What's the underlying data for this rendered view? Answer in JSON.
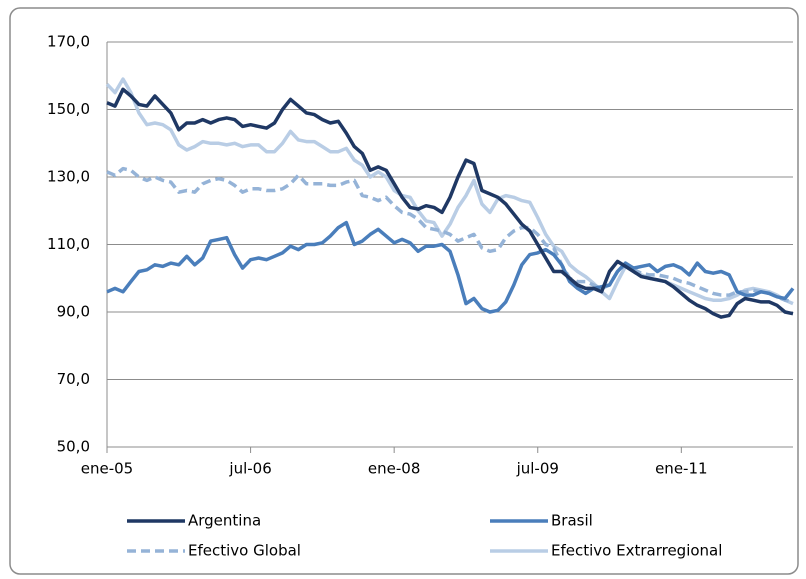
{
  "chart_data": {
    "type": "line",
    "categories": [
      "ene-05",
      null,
      null,
      null,
      null,
      null,
      null,
      null,
      null,
      null,
      null,
      null,
      null,
      null,
      null,
      null,
      null,
      null,
      "jul-06",
      null,
      null,
      null,
      null,
      null,
      null,
      null,
      null,
      null,
      null,
      null,
      null,
      null,
      null,
      null,
      null,
      null,
      "ene-08",
      null,
      null,
      null,
      null,
      null,
      null,
      null,
      null,
      null,
      null,
      null,
      null,
      null,
      null,
      null,
      null,
      null,
      "jul-09",
      null,
      null,
      null,
      null,
      null,
      null,
      null,
      null,
      null,
      null,
      null,
      null,
      null,
      null,
      null,
      null,
      null,
      "ene-11",
      null,
      null,
      null,
      null,
      null,
      null,
      null,
      null,
      null,
      null,
      null,
      null,
      null,
      null
    ],
    "series": [
      {
        "name": "Argentina",
        "color": "#1f3864",
        "dashed": false,
        "values": [
          152,
          151,
          156,
          154,
          151.5,
          151,
          154,
          151.5,
          149,
          144,
          146,
          146,
          147,
          146,
          147,
          147.5,
          147,
          145,
          145.5,
          145,
          144.5,
          146,
          150,
          153,
          151,
          149,
          148.5,
          147,
          146,
          146.5,
          143,
          139,
          137,
          132,
          133,
          132,
          128,
          124,
          121,
          120.5,
          121.5,
          121,
          119.5,
          124,
          130,
          135,
          134,
          126,
          125,
          124,
          122,
          119,
          116,
          114,
          110,
          106,
          102,
          102,
          100,
          98,
          97,
          97,
          96,
          102,
          105,
          103.5,
          102,
          100.5,
          100,
          99.5,
          99,
          97.5,
          95.5,
          93.5,
          92,
          91,
          89.5,
          88.5,
          89,
          92.5,
          94,
          93.5,
          93,
          93,
          92,
          90,
          89.5
        ]
      },
      {
        "name": "Brasil",
        "color": "#4a7ebb",
        "dashed": false,
        "values": [
          96,
          97,
          96,
          99,
          102,
          102.5,
          104,
          103.5,
          104.5,
          104,
          106.5,
          104,
          106,
          111,
          111.5,
          112,
          107,
          103,
          105.5,
          106,
          105.5,
          106.5,
          107.5,
          109.5,
          108.5,
          110,
          110,
          110.5,
          112.5,
          115,
          116.5,
          110,
          111,
          113,
          114.5,
          112.5,
          110.5,
          111.5,
          110.5,
          108,
          109.5,
          109.5,
          110,
          108,
          101,
          92.5,
          94,
          91,
          90,
          90.5,
          93,
          98,
          104,
          107,
          107.5,
          108.5,
          107,
          104,
          99,
          97,
          95.5,
          97,
          97.5,
          98,
          102,
          104.5,
          103,
          103.5,
          104,
          102,
          103.5,
          104,
          103,
          101,
          104.5,
          102,
          101.5,
          102,
          101,
          96,
          95,
          95,
          96,
          95.5,
          94.5,
          94,
          97
        ]
      },
      {
        "name": "Efectivo Global",
        "color": "#95b3d7",
        "dashed": true,
        "values": [
          131.5,
          130.5,
          132.5,
          132,
          130,
          129,
          130,
          129,
          128.5,
          125.5,
          126,
          125.5,
          128,
          129,
          129.5,
          129,
          127.5,
          125.5,
          126.5,
          126.5,
          126,
          126,
          126.5,
          128,
          130.5,
          128,
          128,
          128,
          127.5,
          127.5,
          128.5,
          129,
          124.5,
          124,
          123,
          124,
          121.5,
          119.5,
          119,
          117.5,
          115,
          114.5,
          114,
          113,
          111,
          112,
          113,
          109,
          108,
          108.5,
          112,
          114,
          115,
          115,
          113,
          110,
          109,
          104,
          100,
          99,
          99,
          98,
          97,
          98,
          102,
          104,
          102.5,
          101.5,
          101,
          101,
          100.5,
          100,
          99,
          98.5,
          97.5,
          96.5,
          95.5,
          95,
          95,
          96,
          96,
          96.5,
          96,
          95.5,
          94.5,
          93.5,
          93
        ]
      },
      {
        "name": "Efectivo Extrarregional",
        "color": "#b9cde5",
        "dashed": false,
        "values": [
          157.5,
          155,
          159,
          155,
          149,
          145.5,
          146,
          145.5,
          144,
          139.5,
          138,
          139,
          140.5,
          140,
          140,
          139.5,
          140,
          139,
          139.5,
          139.5,
          137.5,
          137.5,
          140,
          143.5,
          141,
          140.5,
          140.5,
          139,
          137.5,
          137.5,
          138.5,
          135,
          133.5,
          130,
          131.5,
          130,
          126,
          124.5,
          124,
          120,
          117,
          116.5,
          112.5,
          116,
          121,
          124.5,
          129,
          122,
          119.5,
          123.5,
          124.5,
          124,
          123,
          122.5,
          118,
          113,
          109.5,
          108,
          104,
          102,
          100.5,
          98.5,
          96,
          94,
          99,
          103.5,
          103,
          101,
          100,
          99.5,
          99,
          98,
          97,
          96,
          95,
          94,
          93.5,
          93.5,
          94,
          95,
          96.5,
          97,
          96.5,
          96,
          95,
          93.5,
          92.5
        ]
      }
    ],
    "ylim": [
      50,
      170
    ],
    "yticks": [
      {
        "value": 50,
        "label": "50,0"
      },
      {
        "value": 70,
        "label": "70,0"
      },
      {
        "value": 90,
        "label": "90,0"
      },
      {
        "value": 110,
        "label": "110,0"
      },
      {
        "value": 130,
        "label": "130,0"
      },
      {
        "value": 150,
        "label": "150,0"
      },
      {
        "value": 170,
        "label": "170,0"
      }
    ],
    "grid": true
  }
}
